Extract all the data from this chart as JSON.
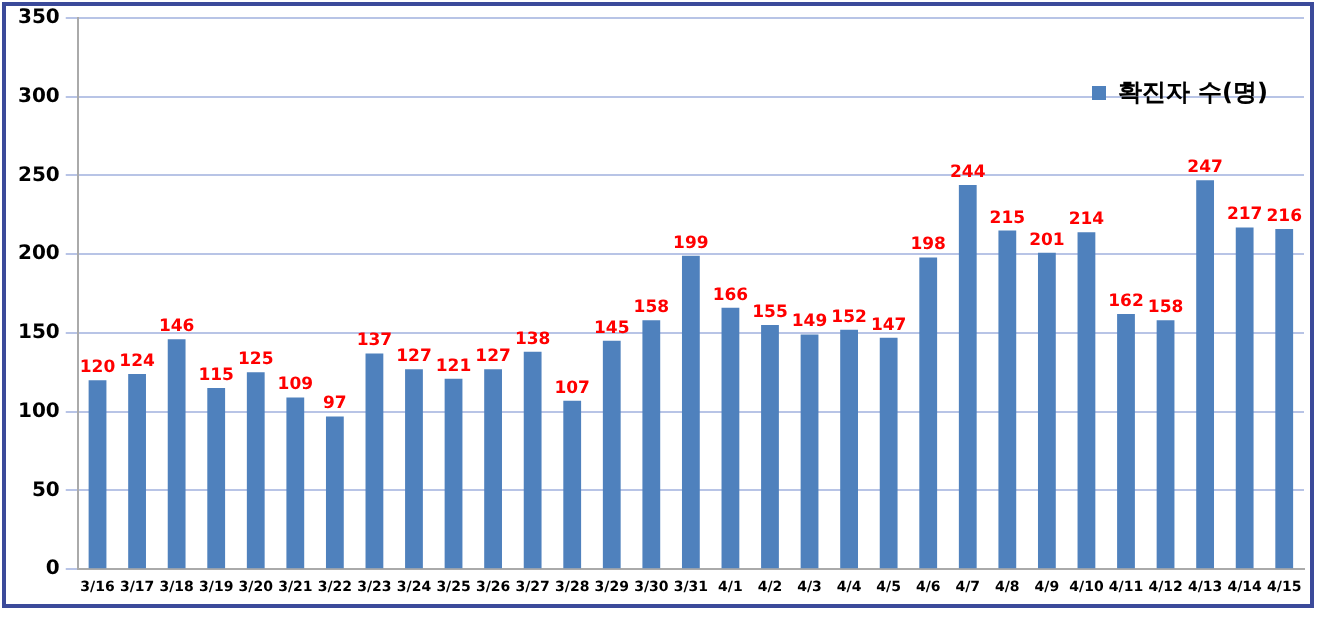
{
  "chart_data": {
    "type": "bar",
    "categories": [
      "3/16",
      "3/17",
      "3/18",
      "3/19",
      "3/20",
      "3/21",
      "3/22",
      "3/23",
      "3/24",
      "3/25",
      "3/26",
      "3/27",
      "3/28",
      "3/29",
      "3/30",
      "3/31",
      "4/1",
      "4/2",
      "4/3",
      "4/4",
      "4/5",
      "4/6",
      "4/7",
      "4/8",
      "4/9",
      "4/10",
      "4/11",
      "4/12",
      "4/13",
      "4/14",
      "4/15"
    ],
    "series": [
      {
        "name": "확진자 수(명)",
        "color": "#4f81bd",
        "values": [
          120,
          124,
          146,
          115,
          125,
          109,
          97,
          137,
          127,
          121,
          127,
          138,
          107,
          145,
          158,
          199,
          166,
          155,
          149,
          152,
          147,
          198,
          244,
          215,
          201,
          214,
          162,
          158,
          247,
          217,
          216
        ]
      }
    ],
    "ylim": [
      0,
      350
    ],
    "yticks": [
      0,
      50,
      100,
      150,
      200,
      250,
      300,
      350
    ],
    "grid": "y",
    "legend": "top right",
    "data_labels": true
  }
}
